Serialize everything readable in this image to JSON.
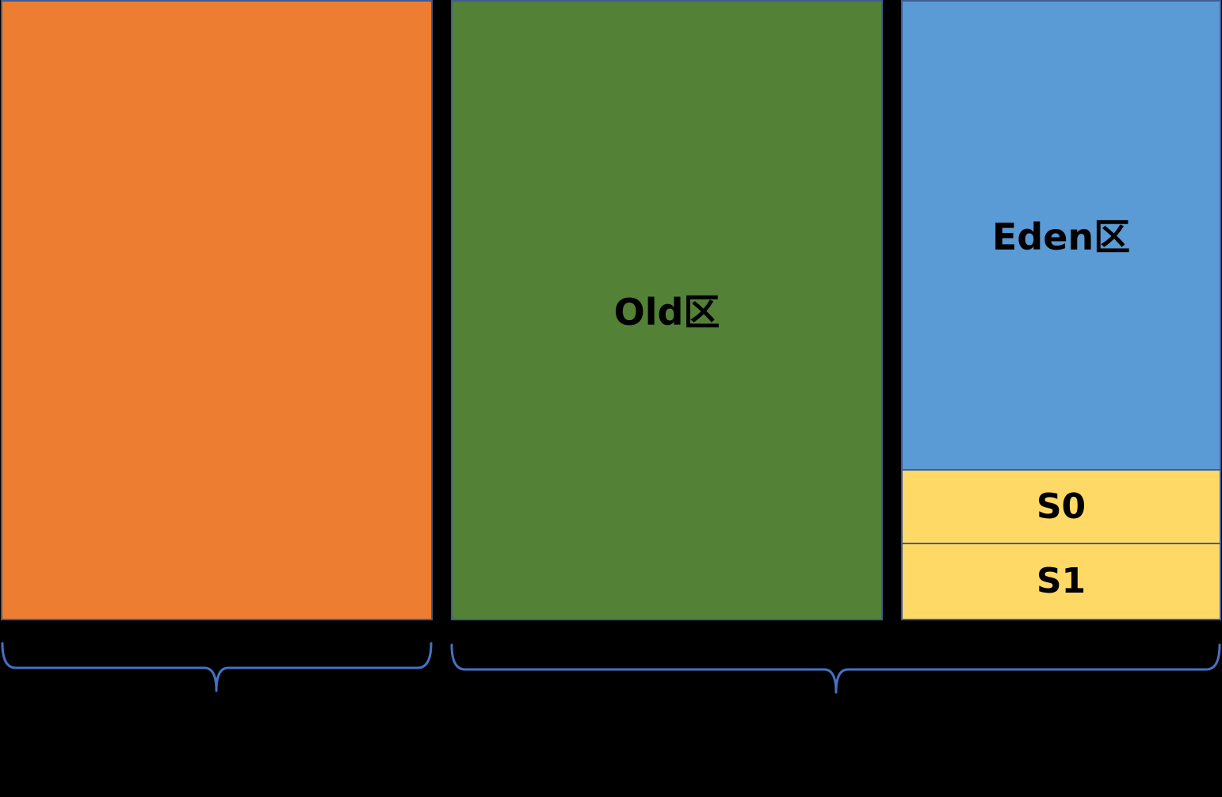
{
  "colors": {
    "permanent": "#ED7D31",
    "old": "#538135",
    "eden": "#5B9BD5",
    "survivor": "#FFD966",
    "border": "#3F5C94",
    "brace": "#4472C4",
    "background": "#000000"
  },
  "blocks": {
    "first": {
      "label": ""
    },
    "old": {
      "label": "Old区"
    },
    "eden": {
      "label": "Eden区"
    },
    "s0": {
      "label": "S0"
    },
    "s1": {
      "label": "S1"
    }
  },
  "braces": {
    "left": {
      "label": ""
    },
    "right": {
      "label": ""
    }
  }
}
